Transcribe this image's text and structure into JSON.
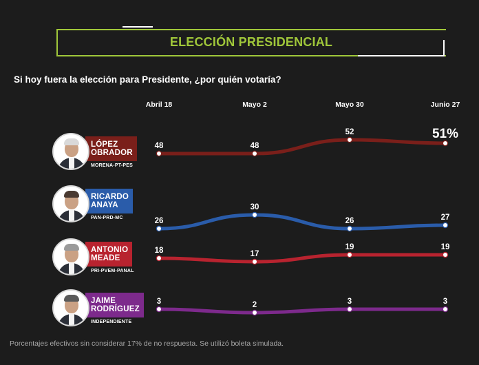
{
  "title": "ELECCIÓN PRESIDENCIAL",
  "question": "Si hoy fuera la elección para Presidente, ¿por quién votaría?",
  "footer": "Porcentajes efectivos sin considerar 17% de no respuesta. Se utilizó boleta simulada.",
  "colors": {
    "accent": "#a0c73a",
    "background": "#1c1c1c",
    "lopez": "#7a1f1a",
    "anaya": "#2a5caa",
    "meade": "#b8232f",
    "rodriguez": "#7d2a8c"
  },
  "candidates": [
    {
      "line1": "LÓPEZ",
      "line2": "OBRADOR",
      "party": "MORENA-PT-PES",
      "color": "#7a1f1a",
      "icon": "portrait-icon"
    },
    {
      "line1": "RICARDO",
      "line2": "ANAYA",
      "party": "PAN-PRD-MC",
      "color": "#2a5caa",
      "icon": "portrait-icon"
    },
    {
      "line1": "ANTONIO",
      "line2": "MEADE",
      "party": "PRI-PVEM-PANAL",
      "color": "#b8232f",
      "icon": "portrait-icon"
    },
    {
      "line1": "JAIME",
      "line2": "RODRÍGUEZ",
      "party": "INDEPENDIENTE",
      "color": "#7d2a8c",
      "icon": "portrait-icon"
    }
  ],
  "chart_data": {
    "type": "line",
    "categories": [
      "Abril 18",
      "Mayo 2",
      "Mayo 30",
      "Junio 27"
    ],
    "series": [
      {
        "name": "LÓPEZ OBRADOR",
        "values": [
          48,
          48,
          52,
          51
        ],
        "labels": [
          "48",
          "48",
          "52",
          "51%"
        ],
        "color": "#7a1f1a"
      },
      {
        "name": "RICARDO ANAYA",
        "values": [
          26,
          30,
          26,
          27
        ],
        "labels": [
          "26",
          "30",
          "26",
          "27"
        ],
        "color": "#2a5caa"
      },
      {
        "name": "ANTONIO MEADE",
        "values": [
          18,
          17,
          19,
          19
        ],
        "labels": [
          "18",
          "17",
          "19",
          "19"
        ],
        "color": "#b8232f"
      },
      {
        "name": "JAIME RODRÍGUEZ",
        "values": [
          3,
          2,
          3,
          3
        ],
        "labels": [
          "3",
          "2",
          "3",
          "3"
        ],
        "color": "#7d2a8c"
      }
    ],
    "grid": false,
    "legend": "left"
  }
}
